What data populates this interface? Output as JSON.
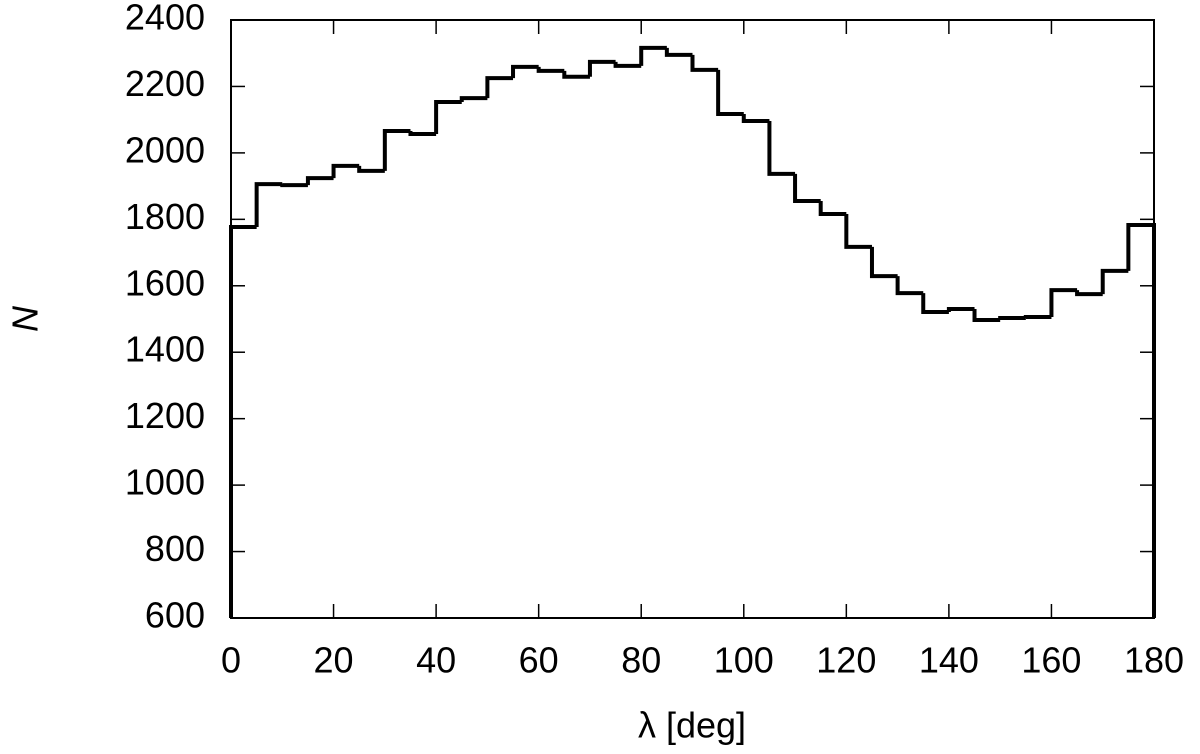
{
  "chart_data": {
    "type": "histogram",
    "x_label": "λ [deg]",
    "y_label": "N",
    "bins": [
      0,
      5,
      10,
      15,
      20,
      25,
      30,
      35,
      40,
      45,
      50,
      55,
      60,
      65,
      70,
      75,
      80,
      85,
      90,
      95,
      100,
      105,
      110,
      115,
      120,
      125,
      130,
      135,
      140,
      145,
      150,
      155,
      160,
      165,
      170,
      175,
      180
    ],
    "values": [
      1777,
      1906,
      1903,
      1924,
      1961,
      1946,
      2066,
      2057,
      2153,
      2165,
      2225,
      2259,
      2247,
      2229,
      2274,
      2262,
      2316,
      2295,
      2250,
      2117,
      2096,
      1937,
      1855,
      1816,
      1717,
      1629,
      1578,
      1521,
      1530,
      1497,
      1503,
      1506,
      1587,
      1575,
      1645,
      1783
    ],
    "color": "#000000",
    "xlim": [
      0,
      180
    ],
    "xticks": [
      0,
      20,
      40,
      60,
      80,
      100,
      120,
      140,
      160,
      180
    ],
    "ylim": [
      600,
      2400
    ],
    "yticks": [
      600,
      800,
      1000,
      1200,
      1400,
      1600,
      1800,
      2000,
      2200,
      2400
    ]
  }
}
